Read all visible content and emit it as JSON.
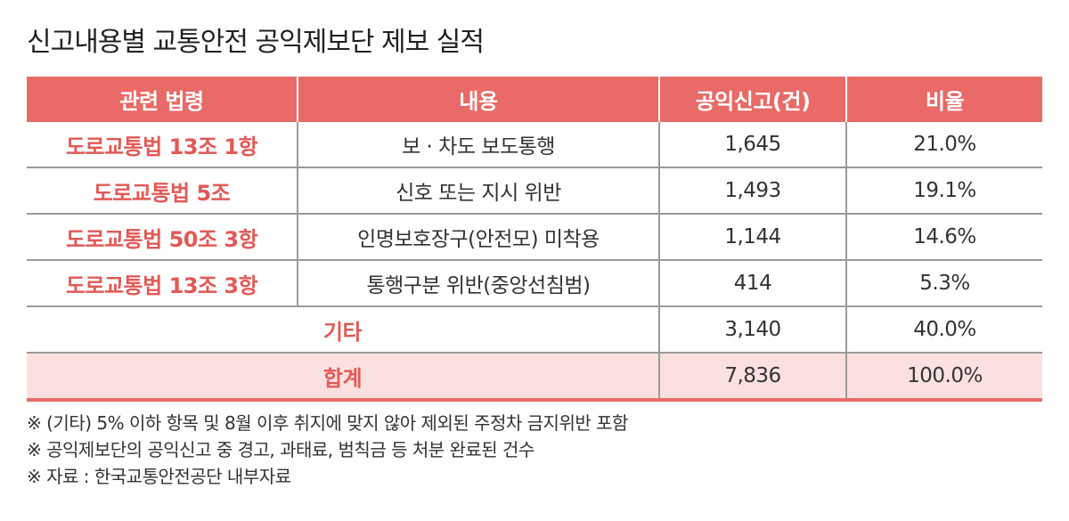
{
  "title": "신고내용별 교통안전 공익제보단 제보 실적",
  "table": {
    "headers": [
      "관련 법령",
      "내용",
      "공익신고(건)",
      "비율"
    ],
    "rows": [
      {
        "law": "도로교통법 13조 1항",
        "content": "보 · 차도 보도통행",
        "count": "1,645",
        "ratio": "21.0%"
      },
      {
        "law": "도로교통법 5조",
        "content": "신호 또는 지시 위반",
        "count": "1,493",
        "ratio": "19.1%"
      },
      {
        "law": "도로교통법 50조 3항",
        "content": "인명보호장구(안전모) 미착용",
        "count": "1,144",
        "ratio": "14.6%"
      },
      {
        "law": "도로교통법 13조 3항",
        "content": "통행구분 위반(중앙선침범)",
        "count": "414",
        "ratio": "5.3%"
      }
    ],
    "other": {
      "label": "기타",
      "count": "3,140",
      "ratio": "40.0%"
    },
    "total": {
      "label": "합계",
      "count": "7,836",
      "ratio": "100.0%"
    }
  },
  "notes": [
    "※ (기타) 5% 이하 항목 및 8월 이후 취지에 맞지 않아 제외된 주정차 금지위반 포함",
    "※ 공익제보단의 공익신고 중 경고, 과태료, 범칙금 등 처분 완료된 건수",
    "※ 자료 : 한국교통안전공단 내부자료"
  ],
  "colors": {
    "header_bg": "#e96a66",
    "accent_text": "#e25a56",
    "total_row_bg": "#fbe0e0",
    "grid_line": "#9a9a9a"
  }
}
